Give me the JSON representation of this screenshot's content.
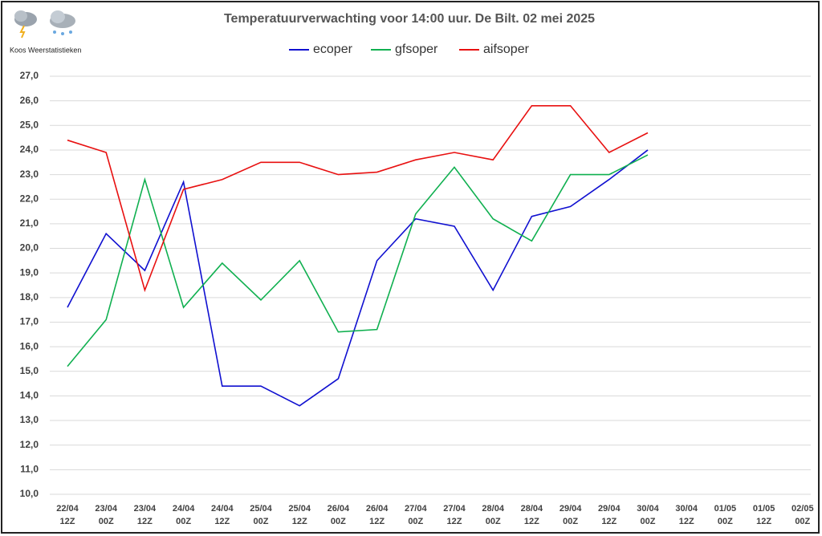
{
  "chart_data": {
    "type": "line",
    "title": "Temperatuurverwachting voor 14:00 uur. De Bilt. 02 mei 2025",
    "logo_text": "Koos Weerstatistieken",
    "categories": [
      "22/04 12Z",
      "23/04 00Z",
      "23/04 12Z",
      "24/04 00Z",
      "24/04 12Z",
      "25/04 00Z",
      "25/04 12Z",
      "26/04 00Z",
      "26/04 12Z",
      "27/04 00Z",
      "27/04 12Z",
      "28/04 00Z",
      "28/04 12Z",
      "29/04 00Z",
      "29/04 12Z",
      "30/04 00Z",
      "30/04 12Z",
      "01/05 00Z",
      "01/05 12Z",
      "02/05 00Z"
    ],
    "series": [
      {
        "name": "ecoper",
        "color": "#1010d0",
        "values": [
          17.6,
          20.6,
          19.1,
          22.7,
          14.4,
          14.4,
          13.6,
          14.7,
          19.5,
          21.2,
          20.9,
          18.3,
          21.3,
          21.7,
          22.8,
          24.0,
          null,
          null,
          null,
          null
        ]
      },
      {
        "name": "gfsoper",
        "color": "#10b050",
        "values": [
          15.2,
          17.1,
          22.8,
          17.6,
          19.4,
          17.9,
          19.5,
          16.6,
          16.7,
          21.4,
          23.3,
          21.2,
          20.3,
          23.0,
          23.0,
          23.8,
          null,
          null,
          null,
          null
        ]
      },
      {
        "name": "aifsoper",
        "color": "#e81010",
        "values": [
          24.4,
          23.9,
          18.3,
          22.4,
          22.8,
          23.5,
          23.5,
          23.0,
          23.1,
          23.6,
          23.9,
          23.6,
          25.8,
          25.8,
          23.9,
          24.7,
          null,
          null,
          null,
          null
        ]
      }
    ],
    "ylim": [
      10,
      27
    ],
    "yticks": [
      {
        "value": 10,
        "label": "10,0"
      },
      {
        "value": 11,
        "label": "11,0"
      },
      {
        "value": 12,
        "label": "12,0"
      },
      {
        "value": 13,
        "label": "13,0"
      },
      {
        "value": 14,
        "label": "14,0"
      },
      {
        "value": 15,
        "label": "15,0"
      },
      {
        "value": 16,
        "label": "16,0"
      },
      {
        "value": 17,
        "label": "17,0"
      },
      {
        "value": 18,
        "label": "18,0"
      },
      {
        "value": 19,
        "label": "19,0"
      },
      {
        "value": 20,
        "label": "20,0"
      },
      {
        "value": 21,
        "label": "21,0"
      },
      {
        "value": 22,
        "label": "22,0"
      },
      {
        "value": 23,
        "label": "23,0"
      },
      {
        "value": 24,
        "label": "24,0"
      },
      {
        "value": 25,
        "label": "25,0"
      },
      {
        "value": 26,
        "label": "26,0"
      },
      {
        "value": 27,
        "label": "27,0"
      }
    ],
    "grid": true,
    "legend": "top"
  }
}
